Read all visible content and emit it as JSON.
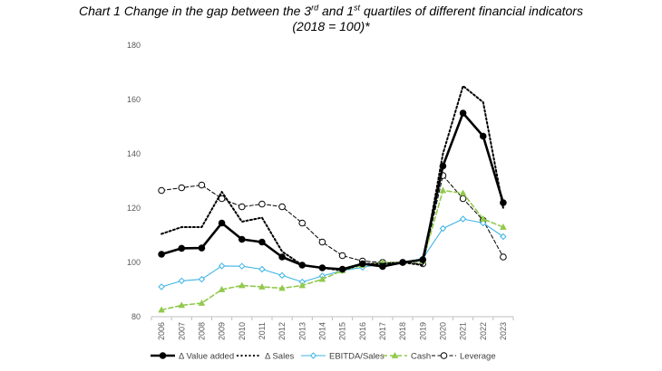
{
  "title": {
    "line1_pre": "Chart 1 Change in the gap between the 3",
    "sup1": "rd",
    "line1_mid": " and 1",
    "sup2": "st",
    "line1_post": " quartiles of different financial indicators",
    "line2": "(2018 = 100)*"
  },
  "chart_data": {
    "type": "line",
    "title": "Chart 1 Change in the gap between the 3rd and 1st quartiles of different financial indicators (2018 = 100)*",
    "xlabel": "",
    "ylabel": "",
    "ylim": [
      80,
      180
    ],
    "yticks": [
      80,
      100,
      120,
      140,
      160,
      180
    ],
    "grid": false,
    "legend_position": "bottom",
    "categories": [
      "2006",
      "2007",
      "2008",
      "2009",
      "2010",
      "2011",
      "2012",
      "2013",
      "2014",
      "2015",
      "2016",
      "2017",
      "2018",
      "2019",
      "2020",
      "2021",
      "2022",
      "2023"
    ],
    "series": [
      {
        "name": "Δ Value added",
        "color": "#000000",
        "style": "solid-thick",
        "marker": "filled-circle",
        "values": [
          103,
          105.2,
          105.3,
          114.5,
          108.5,
          107.5,
          102,
          99,
          98,
          97.5,
          99.5,
          98.5,
          100,
          101,
          135.5,
          155,
          146.5,
          122
        ]
      },
      {
        "name": "Δ Sales",
        "color": "#000000",
        "style": "dotted",
        "marker": "none",
        "values": [
          110.5,
          113,
          113,
          126,
          115,
          116.5,
          104,
          99,
          98,
          97,
          99.5,
          99.5,
          100,
          99,
          140,
          165,
          159,
          120
        ]
      },
      {
        "name": "EBITDA/Sales",
        "color": "#3fb4e5",
        "style": "solid",
        "marker": "open-diamond",
        "values": [
          91,
          93.2,
          93.8,
          98.7,
          98.6,
          97.5,
          95.2,
          92.8,
          95,
          97,
          98.2,
          99.5,
          100,
          101.5,
          112.5,
          116,
          114.5,
          109.5
        ]
      },
      {
        "name": "Cash",
        "color": "#92c94e",
        "style": "dashed",
        "marker": "triangle",
        "values": [
          82.5,
          84.2,
          85,
          90,
          91.5,
          91,
          90.5,
          91.5,
          93.8,
          97,
          99,
          100,
          100,
          100.5,
          126.5,
          125.5,
          116,
          113
        ]
      },
      {
        "name": "Leverage",
        "color": "#000000",
        "style": "thin-dashed",
        "marker": "open-circle",
        "values": [
          126.5,
          127.5,
          128.5,
          123.5,
          120.5,
          121.5,
          120.5,
          114.5,
          107.5,
          102.5,
          100.5,
          100,
          100,
          99.5,
          132,
          123.5,
          115.5,
          102
        ]
      }
    ]
  }
}
